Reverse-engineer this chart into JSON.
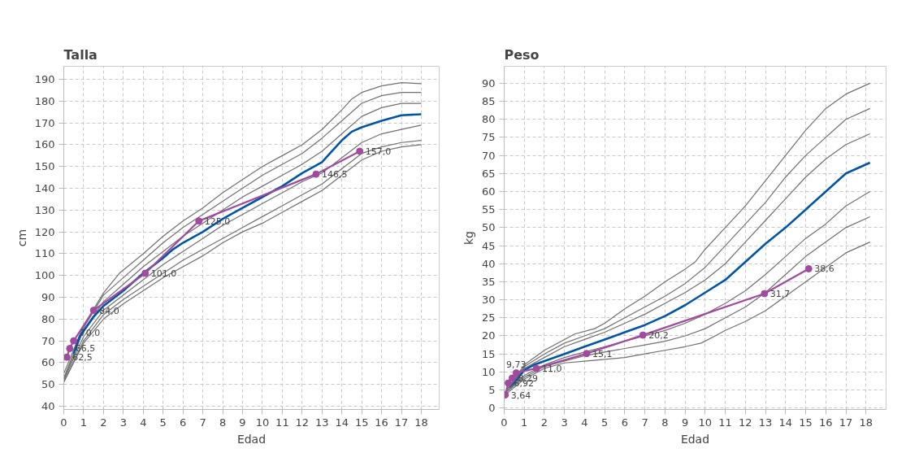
{
  "chart_data": [
    {
      "type": "line",
      "title": "Talla",
      "xlabel": "Edad",
      "ylabel": "cm",
      "xlim": [
        0,
        18.9
      ],
      "ylim": [
        38.5,
        196
      ],
      "xticks": [
        0,
        1,
        2,
        3,
        4,
        5,
        6,
        7,
        8,
        9,
        10,
        11,
        12,
        13,
        14,
        15,
        16,
        17,
        18
      ],
      "yticks": [
        40,
        50,
        60,
        70,
        80,
        90,
        100,
        110,
        120,
        130,
        140,
        150,
        160,
        170,
        180,
        190
      ],
      "grid": true,
      "marker": "none",
      "line_style": "solid",
      "series": [
        {
          "color": "#707070",
          "x": [
            0,
            0.5,
            1,
            2,
            2.8,
            4,
            5,
            6,
            7,
            8,
            9,
            10,
            11,
            12,
            13,
            14,
            14.5,
            15,
            16,
            17,
            18
          ],
          "values": [
            55,
            66,
            77,
            92,
            101,
            110,
            118,
            125,
            131,
            138,
            144,
            150,
            155,
            160,
            167,
            176,
            181,
            184,
            187,
            188.5,
            188
          ]
        },
        {
          "color": "#707070",
          "x": [
            0,
            1,
            2,
            3,
            4,
            5,
            6,
            7,
            8,
            9,
            10,
            11,
            12,
            13,
            14,
            15,
            16,
            17,
            18
          ],
          "values": [
            53,
            76,
            91,
            99,
            107,
            115,
            122,
            128,
            134,
            140,
            146,
            151,
            156,
            163,
            171,
            179,
            182.5,
            184,
            184
          ]
        },
        {
          "color": "#707070",
          "x": [
            0,
            1,
            2,
            3,
            4,
            5,
            6,
            7,
            8,
            9,
            10,
            11,
            12,
            13,
            14,
            15,
            16,
            17,
            18
          ],
          "values": [
            52,
            75,
            88,
            96,
            104,
            111,
            118,
            124,
            130,
            136,
            141,
            146,
            151,
            157,
            165,
            173,
            177,
            179,
            179
          ]
        },
        {
          "color": "#0055a5",
          "x": [
            0.5,
            0.8,
            1.5,
            2,
            3,
            4,
            5,
            5.5,
            6,
            7,
            8,
            9,
            10,
            11,
            12,
            13,
            13.5,
            14,
            14.5,
            15,
            16,
            17,
            18
          ],
          "values": [
            64,
            72,
            81,
            86,
            93,
            101,
            108,
            112,
            115,
            120,
            126,
            131,
            136,
            141,
            147,
            152,
            157,
            162,
            166,
            168,
            171,
            173.5,
            174
          ]
        },
        {
          "color": "#707070",
          "x": [
            0,
            1,
            2,
            3,
            4,
            5,
            6,
            7,
            8,
            9,
            10,
            11,
            12,
            13,
            14,
            15,
            16,
            17,
            18
          ],
          "values": [
            52,
            72,
            84,
            91,
            98,
            105,
            111,
            117,
            123,
            128,
            133,
            138,
            143,
            147,
            154,
            161,
            165,
            167,
            169
          ]
        },
        {
          "color": "#707070",
          "x": [
            0,
            1,
            2,
            3,
            4,
            5,
            6,
            7,
            8,
            9,
            10,
            11,
            12,
            13,
            14,
            15,
            16,
            17,
            18
          ],
          "values": [
            51,
            70,
            82,
            89,
            95,
            101,
            107,
            112,
            117,
            122,
            127,
            132,
            137,
            142,
            149,
            156,
            159,
            161,
            162
          ]
        },
        {
          "color": "#707070",
          "x": [
            0,
            1,
            2,
            3,
            4,
            5,
            6,
            7,
            8,
            9,
            10,
            11,
            12,
            13,
            14,
            15,
            16,
            17,
            18
          ],
          "values": [
            51,
            69,
            80,
            87,
            93,
            99,
            104,
            109,
            115,
            120,
            124,
            129,
            134,
            139,
            146,
            153,
            157,
            159,
            160
          ]
        },
        {
          "color": "#a24a9e",
          "marker": "circle",
          "x": [
            0.15,
            0.3,
            0.5,
            1.5,
            4.1,
            6.8,
            12.7,
            14.9
          ],
          "values": [
            62.5,
            66.5,
            70.0,
            84.0,
            101.0,
            125.0,
            146.5,
            157.0
          ],
          "value_labels": [
            "62,5",
            "66,5",
            "70,0",
            "84,0",
            "101,0",
            "125,0",
            "146,5",
            "157,0"
          ]
        }
      ]
    },
    {
      "type": "line",
      "title": "Peso",
      "xlabel": "Edad",
      "ylabel": "kg",
      "xlim": [
        0,
        19
      ],
      "ylim": [
        -0.4,
        94.7
      ],
      "xticks": [
        0,
        1,
        2,
        3,
        4,
        5,
        6,
        7,
        8,
        9,
        10,
        11,
        12,
        13,
        14,
        15,
        16,
        17,
        18
      ],
      "yticks": [
        0,
        5,
        10,
        15,
        20,
        25,
        30,
        35,
        40,
        45,
        50,
        55,
        60,
        65,
        70,
        75,
        80,
        85,
        90
      ],
      "grid": true,
      "marker": "none",
      "line_style": "solid",
      "series": [
        {
          "color": "#707070",
          "x": [
            0,
            1,
            2,
            3,
            3.5,
            4.5,
            5,
            6,
            7,
            8,
            9,
            9.5,
            10,
            11,
            12,
            13,
            14,
            15,
            16,
            17,
            18.2
          ],
          "values": [
            4,
            12,
            16,
            19,
            20.5,
            22,
            23.5,
            27.5,
            31,
            35,
            38.5,
            40.5,
            44,
            50,
            56,
            63,
            70,
            77,
            83,
            87,
            90
          ]
        },
        {
          "color": "#707070",
          "x": [
            0,
            1,
            2,
            3,
            4,
            5,
            6,
            7,
            8,
            9,
            10,
            11,
            12,
            13,
            14,
            15,
            16,
            17,
            18.2
          ],
          "values": [
            4,
            11.5,
            15,
            18,
            20,
            22,
            25,
            28,
            31,
            34.5,
            39,
            45,
            51,
            57,
            64,
            70,
            75,
            80,
            83
          ]
        },
        {
          "color": "#707070",
          "x": [
            0,
            1,
            2,
            3,
            4,
            5,
            6,
            7,
            8,
            9,
            10,
            11,
            12,
            13,
            14,
            15,
            16,
            17,
            18.2
          ],
          "values": [
            4,
            11,
            14,
            17,
            19,
            21,
            23.5,
            26,
            29,
            32,
            35.5,
            40,
            46,
            52,
            58,
            64,
            69,
            73,
            76
          ]
        },
        {
          "color": "#0055a5",
          "x": [
            0.3,
            1,
            1.5,
            2,
            3,
            4,
            5,
            6,
            7,
            8,
            9,
            10,
            11,
            12,
            13,
            14,
            15,
            16,
            17,
            18.2
          ],
          "values": [
            5.5,
            10.5,
            12,
            13,
            15,
            17,
            19,
            21,
            23,
            25.5,
            28.5,
            32,
            35.5,
            40.5,
            45.5,
            50,
            55,
            60,
            65,
            68
          ]
        },
        {
          "color": "#707070",
          "x": [
            0,
            1,
            2,
            3,
            4,
            5,
            6,
            7,
            8,
            9,
            10,
            11,
            12,
            13,
            14,
            15,
            16,
            17,
            18.2
          ],
          "values": [
            4,
            9,
            12,
            14,
            15.5,
            17,
            18.5,
            20,
            21.5,
            23.5,
            26,
            29,
            32.5,
            37,
            42,
            47,
            51,
            56,
            60
          ]
        },
        {
          "color": "#707070",
          "x": [
            0,
            1,
            2,
            3,
            4,
            5,
            6,
            7,
            8,
            9,
            10,
            11,
            12,
            13,
            14,
            15,
            16,
            17,
            18.2
          ],
          "values": [
            4,
            8.5,
            11.5,
            13,
            14.5,
            15.5,
            16.5,
            17.5,
            18.5,
            20,
            22,
            25,
            28,
            32,
            37,
            42,
            46,
            50,
            53
          ]
        },
        {
          "color": "#707070",
          "x": [
            0,
            1,
            2,
            3,
            4,
            5,
            6,
            7,
            8,
            9,
            9.8,
            10.5,
            11,
            12,
            13,
            14,
            15,
            16,
            17,
            18.2
          ],
          "values": [
            3.5,
            8,
            11,
            12.5,
            13,
            13.5,
            14,
            15,
            16,
            17,
            18,
            20,
            21.5,
            24,
            27,
            31,
            35,
            39,
            43,
            46
          ]
        },
        {
          "color": "#a24a9e",
          "marker": "circle",
          "x": [
            0.05,
            0.2,
            0.4,
            0.6,
            1.6,
            4.1,
            6.9,
            12.95,
            15.15
          ],
          "values": [
            3.64,
            6.92,
            8.29,
            9.73,
            11.0,
            15.1,
            20.2,
            31.7,
            38.6
          ],
          "value_labels": [
            "3,64",
            "6,92",
            "8,29",
            "9,73",
            "11,0",
            "15,1",
            "20,2",
            "31,7",
            "38,6"
          ]
        }
      ]
    }
  ]
}
